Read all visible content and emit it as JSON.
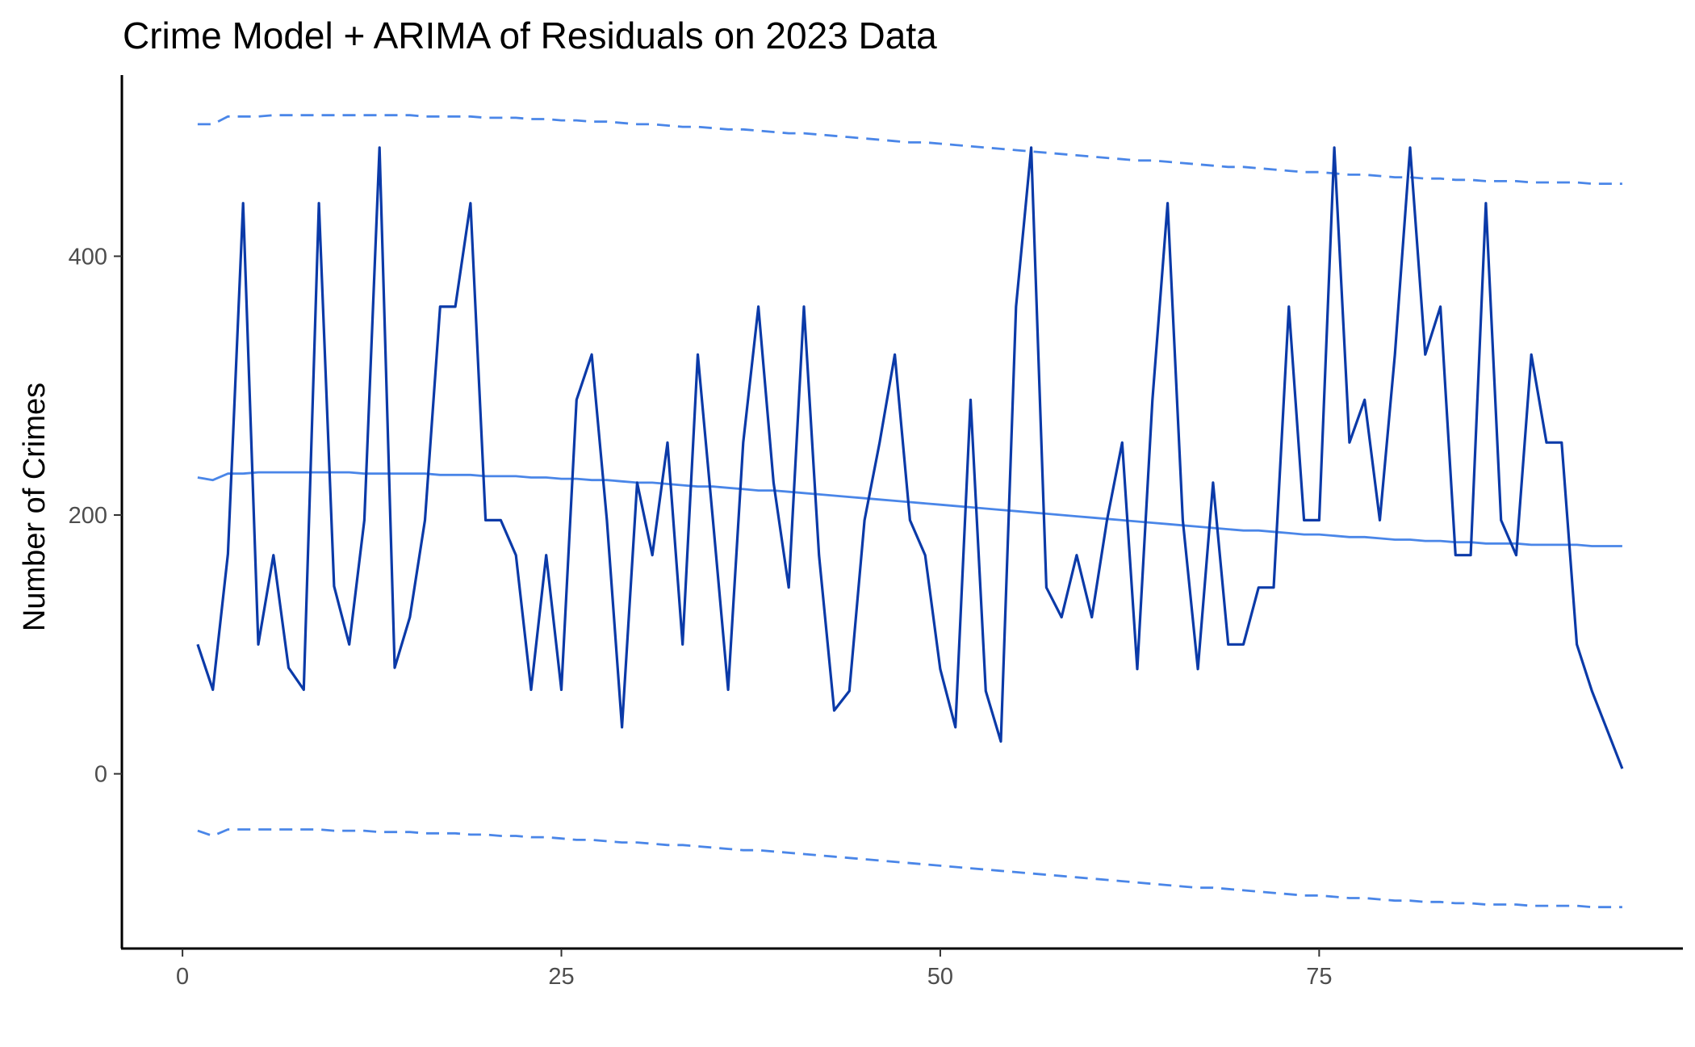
{
  "chart_data": {
    "type": "line",
    "title": "Crime Model + ARIMA of Residuals on 2023 Data",
    "xlabel": "",
    "ylabel": "Number of Crimes",
    "xlim": [
      -4,
      99
    ],
    "ylim": [
      -135,
      540
    ],
    "x_ticks": [
      0,
      25,
      50,
      75
    ],
    "y_ticks": [
      0,
      200,
      400
    ],
    "grid": false,
    "legend": "none",
    "colors": {
      "observed": "#0b3aa8",
      "forecast": "#4a86e8",
      "bounds": "#4a86e8"
    },
    "x": [
      1,
      2,
      3,
      4,
      5,
      6,
      7,
      8,
      9,
      10,
      11,
      12,
      13,
      14,
      15,
      16,
      17,
      18,
      19,
      20,
      21,
      22,
      23,
      24,
      25,
      26,
      27,
      28,
      29,
      30,
      31,
      32,
      33,
      34,
      35,
      36,
      37,
      38,
      39,
      40,
      41,
      42,
      43,
      44,
      45,
      46,
      47,
      48,
      49,
      50,
      51,
      52,
      53,
      54,
      55,
      56,
      57,
      58,
      59,
      60,
      61,
      62,
      63,
      64,
      65,
      66,
      67,
      68,
      69,
      70,
      71,
      72,
      73,
      74,
      75,
      76,
      77,
      78,
      79,
      80,
      81,
      82,
      83,
      84,
      85,
      86,
      87,
      88,
      89,
      90,
      91,
      92,
      93,
      94,
      95
    ],
    "series": [
      {
        "role": "observed",
        "style": "solid",
        "values": [
          100,
          65,
          170,
          441,
          100,
          169,
          82,
          65,
          441,
          145,
          100,
          196,
          484,
          82,
          121,
          196,
          361,
          361,
          441,
          196,
          196,
          169,
          65,
          169,
          65,
          289,
          324,
          196,
          36,
          225,
          169,
          256,
          100,
          324,
          196,
          65,
          256,
          361,
          225,
          144,
          361,
          169,
          49,
          64,
          196,
          256,
          324,
          196,
          169,
          81,
          36,
          289,
          64,
          25,
          361,
          484,
          144,
          121,
          169,
          121,
          196,
          256,
          81,
          289,
          441,
          196,
          81,
          225,
          100,
          100,
          144,
          144,
          361,
          196,
          196,
          484,
          256,
          289,
          196,
          324,
          484,
          324,
          361,
          169,
          169,
          441,
          196,
          169,
          324,
          256,
          256,
          100,
          64,
          34,
          4
        ]
      },
      {
        "role": "forecast",
        "style": "solid",
        "values": [
          229,
          227,
          232,
          232,
          233,
          233,
          233,
          233,
          233,
          233,
          233,
          232,
          232,
          232,
          232,
          232,
          231,
          231,
          231,
          230,
          230,
          230,
          229,
          229,
          228,
          228,
          227,
          227,
          226,
          225,
          225,
          224,
          223,
          222,
          222,
          221,
          220,
          219,
          219,
          218,
          217,
          216,
          215,
          214,
          213,
          212,
          211,
          210,
          209,
          208,
          207,
          206,
          205,
          204,
          203,
          202,
          201,
          200,
          199,
          198,
          197,
          196,
          195,
          194,
          193,
          192,
          191,
          190,
          189,
          188,
          188,
          187,
          186,
          185,
          185,
          184,
          183,
          183,
          182,
          181,
          181,
          180,
          180,
          179,
          179,
          178,
          178,
          178,
          177,
          177,
          177,
          177,
          176,
          176,
          176
        ]
      },
      {
        "role": "upper-bound",
        "style": "dashed",
        "values": [
          502,
          502,
          508,
          508,
          508,
          509,
          509,
          509,
          509,
          509,
          509,
          509,
          509,
          509,
          509,
          508,
          508,
          508,
          508,
          507,
          507,
          507,
          506,
          506,
          505,
          505,
          504,
          504,
          503,
          502,
          502,
          501,
          500,
          500,
          499,
          498,
          498,
          497,
          496,
          495,
          495,
          494,
          493,
          492,
          491,
          490,
          489,
          488,
          488,
          487,
          486,
          485,
          484,
          483,
          482,
          481,
          480,
          479,
          478,
          477,
          476,
          475,
          474,
          474,
          473,
          472,
          471,
          470,
          469,
          469,
          468,
          467,
          466,
          465,
          465,
          464,
          463,
          463,
          462,
          461,
          461,
          460,
          460,
          459,
          459,
          458,
          458,
          458,
          457,
          457,
          457,
          457,
          456,
          456,
          456
        ]
      },
      {
        "role": "lower-bound",
        "style": "dashed",
        "values": [
          -44,
          -48,
          -43,
          -43,
          -43,
          -43,
          -43,
          -43,
          -43,
          -44,
          -44,
          -44,
          -45,
          -45,
          -45,
          -46,
          -46,
          -46,
          -47,
          -47,
          -48,
          -48,
          -49,
          -49,
          -50,
          -51,
          -51,
          -52,
          -53,
          -53,
          -54,
          -55,
          -55,
          -56,
          -57,
          -58,
          -59,
          -59,
          -60,
          -61,
          -62,
          -63,
          -64,
          -65,
          -66,
          -67,
          -68,
          -69,
          -70,
          -71,
          -72,
          -73,
          -74,
          -75,
          -76,
          -77,
          -78,
          -79,
          -80,
          -81,
          -82,
          -83,
          -84,
          -85,
          -86,
          -87,
          -88,
          -88,
          -89,
          -90,
          -91,
          -92,
          -93,
          -94,
          -94,
          -95,
          -96,
          -96,
          -97,
          -98,
          -98,
          -99,
          -99,
          -100,
          -100,
          -101,
          -101,
          -101,
          -102,
          -102,
          -102,
          -102,
          -103,
          -103,
          -103
        ]
      }
    ]
  }
}
